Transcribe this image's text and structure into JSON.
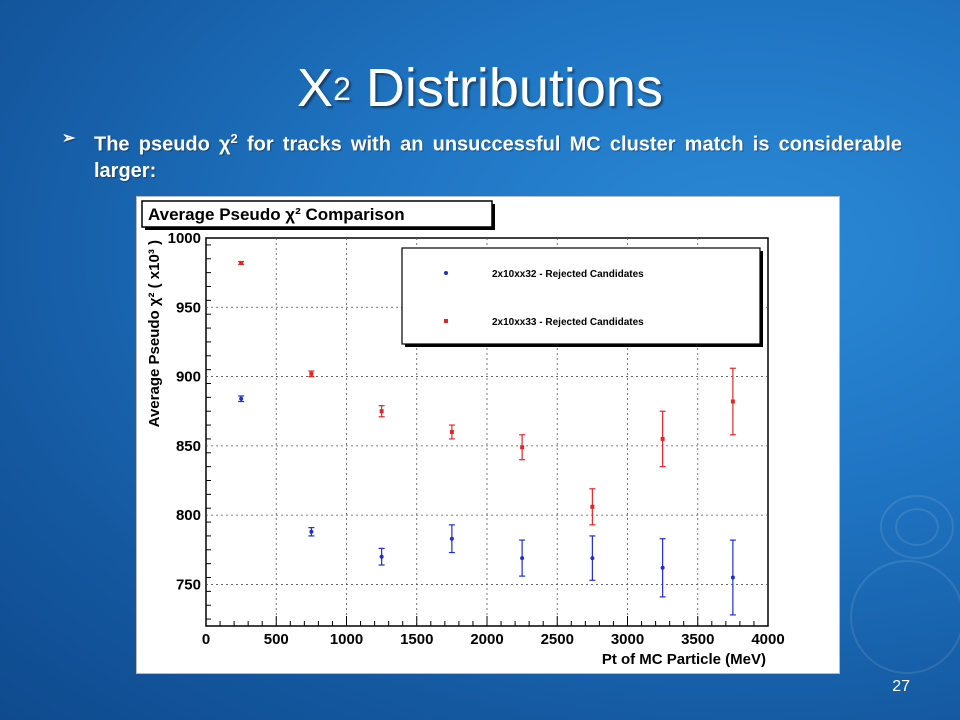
{
  "slide": {
    "title_main": "X",
    "title_sup": "2",
    "title_rest": " Distributions",
    "bullet_glyph": "➢",
    "bullet_part1": "The pseudo χ",
    "bullet_sup": "2",
    "bullet_part2": " for tracks with an unsuccessful MC cluster match is considerable larger:",
    "page_number": "27"
  },
  "chart_data": {
    "type": "scatter",
    "title": "Average Pseudo χ² Comparison",
    "xlabel": "Pt of MC Particle (MeV)",
    "ylabel": "Average Pseudo χ²  ( x10³ )",
    "xlim": [
      0,
      4000
    ],
    "ylim": [
      720,
      1000
    ],
    "x_ticks": [
      0,
      500,
      1000,
      1500,
      2000,
      2500,
      3000,
      3500,
      4000
    ],
    "y_ticks": [
      750,
      800,
      850,
      900,
      950,
      1000
    ],
    "grid": true,
    "legend": "top-right",
    "x": [
      250,
      750,
      1250,
      1750,
      2250,
      2750,
      3250,
      3750
    ],
    "series": [
      {
        "name": "2x10xx32 - Rejected Candidates",
        "color": "#1f2ecf",
        "values": [
          884,
          788,
          770,
          783,
          769,
          769,
          762,
          755
        ],
        "errors": [
          2,
          3,
          6,
          10,
          13,
          16,
          21,
          27
        ]
      },
      {
        "name": "2x10xx33 - Rejected Candidates",
        "color": "#e62626",
        "values": [
          982,
          902,
          875,
          860,
          849,
          806,
          855,
          882
        ],
        "errors": [
          1,
          2,
          4,
          5,
          9,
          13,
          20,
          24
        ]
      }
    ]
  }
}
